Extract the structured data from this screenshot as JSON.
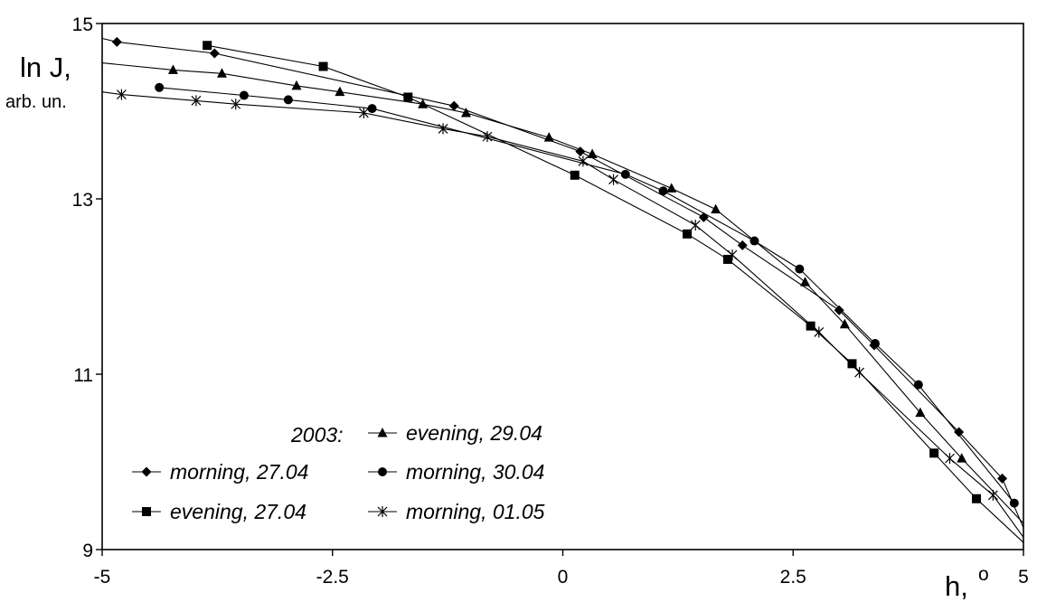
{
  "chart_data": {
    "type": "line",
    "ylabel_main": "ln J,",
    "ylabel_sub": "arb. un.",
    "xlabel_main": "h,",
    "xlabel_sup": "o",
    "xlim": [
      -5,
      5
    ],
    "ylim": [
      9,
      15
    ],
    "xticks": [
      "-5",
      "-2.5",
      "0",
      "2.5",
      "5"
    ],
    "yticks": [
      "9",
      "11",
      "13",
      "15"
    ],
    "legend_title": "2003:",
    "grid": false,
    "series": [
      {
        "name": "morning, 27.04",
        "marker": "diamond",
        "x": [
          -5.0,
          -4.84,
          -3.78,
          -1.18,
          0.19,
          1.53,
          1.95,
          3.0,
          3.38,
          4.3,
          4.77,
          5.0
        ],
        "y": [
          14.83,
          14.79,
          14.66,
          14.06,
          13.54,
          12.79,
          12.47,
          11.73,
          11.33,
          10.34,
          9.81,
          9.25
        ]
      },
      {
        "name": "evening, 27.04",
        "marker": "square",
        "x": [
          -3.86,
          -2.6,
          -1.68,
          0.13,
          1.35,
          1.79,
          2.69,
          3.14,
          4.03,
          4.49,
          5.0
        ],
        "y": [
          14.75,
          14.51,
          14.16,
          13.27,
          12.6,
          12.31,
          11.55,
          11.12,
          10.1,
          9.58,
          9.08
        ]
      },
      {
        "name": "evening, 29.04",
        "marker": "triangle",
        "x": [
          -5.0,
          -4.23,
          -3.7,
          -2.89,
          -2.42,
          -1.52,
          -1.05,
          -0.15,
          0.32,
          1.18,
          1.66,
          2.63,
          3.06,
          3.88,
          4.33,
          5.0
        ],
        "y": [
          14.55,
          14.47,
          14.43,
          14.29,
          14.22,
          14.08,
          13.98,
          13.7,
          13.51,
          13.12,
          12.88,
          12.05,
          11.57,
          10.56,
          10.04,
          9.3
        ]
      },
      {
        "name": "morning, 30.04",
        "marker": "circle",
        "x": [
          -4.38,
          -3.46,
          -2.98,
          -2.07,
          0.68,
          1.09,
          2.08,
          2.57,
          3.39,
          3.86,
          4.9
        ],
        "y": [
          14.27,
          14.18,
          14.13,
          14.03,
          13.28,
          13.09,
          12.52,
          12.2,
          11.35,
          10.88,
          9.53
        ]
      },
      {
        "name": "morning, 01.05",
        "marker": "asterisk",
        "x": [
          -5.0,
          -4.79,
          -3.98,
          -3.55,
          -2.16,
          -1.3,
          -0.82,
          0.22,
          0.55,
          1.44,
          1.84,
          2.78,
          3.22,
          4.2,
          4.67,
          5.0
        ],
        "y": [
          14.22,
          14.19,
          14.12,
          14.08,
          13.98,
          13.8,
          13.71,
          13.43,
          13.22,
          12.7,
          12.36,
          11.48,
          11.02,
          10.04,
          9.62,
          9.14
        ]
      }
    ]
  }
}
